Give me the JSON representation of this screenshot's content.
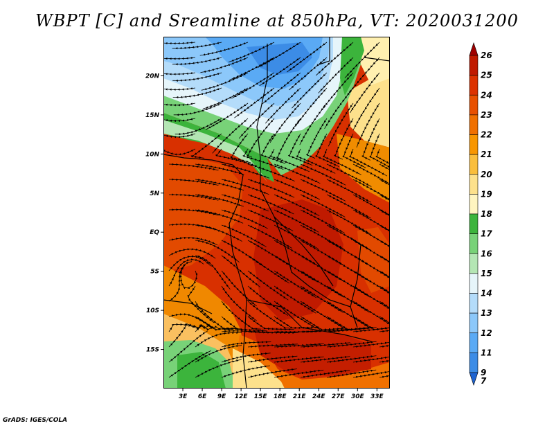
{
  "title": "WBPT [C] and Sreamline at 850hPa, VT: 2020031200",
  "credit": "GrADS: IGES/COLA",
  "map": {
    "lon_range": [
      0,
      35
    ],
    "lat_range": [
      -20,
      25
    ],
    "lat_ticks": [
      {
        "value": 20,
        "label": "20N"
      },
      {
        "value": 15,
        "label": "15N"
      },
      {
        "value": 10,
        "label": "10N"
      },
      {
        "value": 5,
        "label": "5N"
      },
      {
        "value": 0,
        "label": "EQ"
      },
      {
        "value": -5,
        "label": "5S"
      },
      {
        "value": -10,
        "label": "10S"
      },
      {
        "value": -15,
        "label": "15S"
      }
    ],
    "lon_ticks": [
      {
        "value": 3,
        "label": "3E"
      },
      {
        "value": 6,
        "label": "6E"
      },
      {
        "value": 9,
        "label": "9E"
      },
      {
        "value": 12,
        "label": "12E"
      },
      {
        "value": 15,
        "label": "15E"
      },
      {
        "value": 18,
        "label": "18E"
      },
      {
        "value": 21,
        "label": "21E"
      },
      {
        "value": 24,
        "label": "24E"
      },
      {
        "value": 27,
        "label": "27E"
      },
      {
        "value": 30,
        "label": "30E"
      },
      {
        "value": 33,
        "label": "33E"
      }
    ]
  },
  "colorbar": {
    "levels": [
      {
        "label": "26",
        "color": "#a00000"
      },
      {
        "label": "25",
        "color": "#c01a00"
      },
      {
        "label": "24",
        "color": "#dc3200"
      },
      {
        "label": "23",
        "color": "#e85000"
      },
      {
        "label": "22",
        "color": "#f07000"
      },
      {
        "label": "21",
        "color": "#f89600"
      },
      {
        "label": "20",
        "color": "#fabe3c"
      },
      {
        "label": "19",
        "color": "#fde18c"
      },
      {
        "label": "18",
        "color": "#fff5c0"
      },
      {
        "label": "17",
        "color": "#3cb43c"
      },
      {
        "label": "16",
        "color": "#78d278"
      },
      {
        "label": "15",
        "color": "#b4e6b4"
      },
      {
        "label": "14",
        "color": "#e6f5fa"
      },
      {
        "label": "13",
        "color": "#b4dcfa"
      },
      {
        "label": "12",
        "color": "#8cc8fa"
      },
      {
        "label": "11",
        "color": "#5aaaf5"
      },
      {
        "label": "9",
        "color": "#3c8ce6"
      },
      {
        "label": "7",
        "color": "#1e64d2"
      }
    ]
  }
}
